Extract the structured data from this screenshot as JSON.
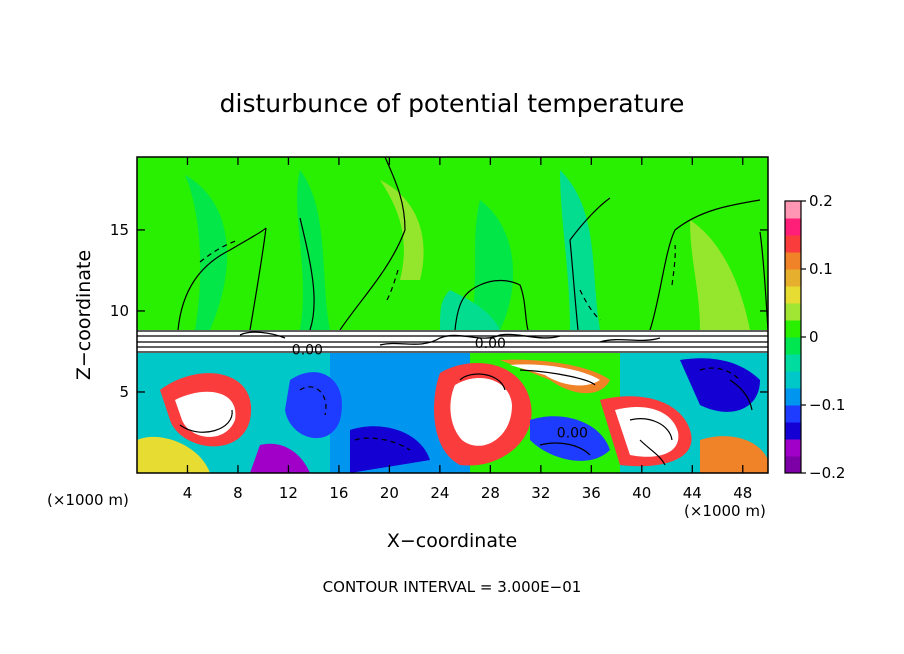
{
  "chart_data": {
    "type": "heatmap",
    "title": "disturbunce of potential temperature",
    "xlabel": "X−coordinate",
    "ylabel": "Z−coordinate",
    "x_unit_left": "(×1000 m)",
    "x_unit_right": "(×1000 m)",
    "xlim": [
      0,
      50
    ],
    "ylim": [
      0,
      19.5
    ],
    "x_ticks": [
      4,
      8,
      12,
      16,
      20,
      24,
      28,
      32,
      36,
      40,
      44,
      48
    ],
    "y_ticks": [
      5,
      10,
      15
    ],
    "colorbar": {
      "range": [
        -0.2,
        0.2
      ],
      "tick_values": [
        0.2,
        0.1,
        0,
        -0.1,
        -0.2
      ],
      "tick_labels": [
        "0.2",
        "0.1",
        "0",
        "−0.1",
        "−0.2"
      ],
      "colors": [
        "#7d00a6",
        "#a000c8",
        "#1400d2",
        "#1e3cff",
        "#0096f0",
        "#00c8c8",
        "#00dca0",
        "#00e650",
        "#28f000",
        "#a0e632",
        "#e6dc32",
        "#e6af2d",
        "#f08228",
        "#fa3c3c",
        "#ff1e78",
        "#ff96b4"
      ]
    },
    "contour_labels": [
      {
        "x": 13.5,
        "y": 7.3,
        "text": "0.00"
      },
      {
        "x": 28.0,
        "y": 7.7,
        "text": "0.00"
      },
      {
        "x": 34.5,
        "y": 2.2,
        "text": "0.00"
      }
    ],
    "footer": "CONTOUR INTERVAL = 3.000E−01"
  }
}
